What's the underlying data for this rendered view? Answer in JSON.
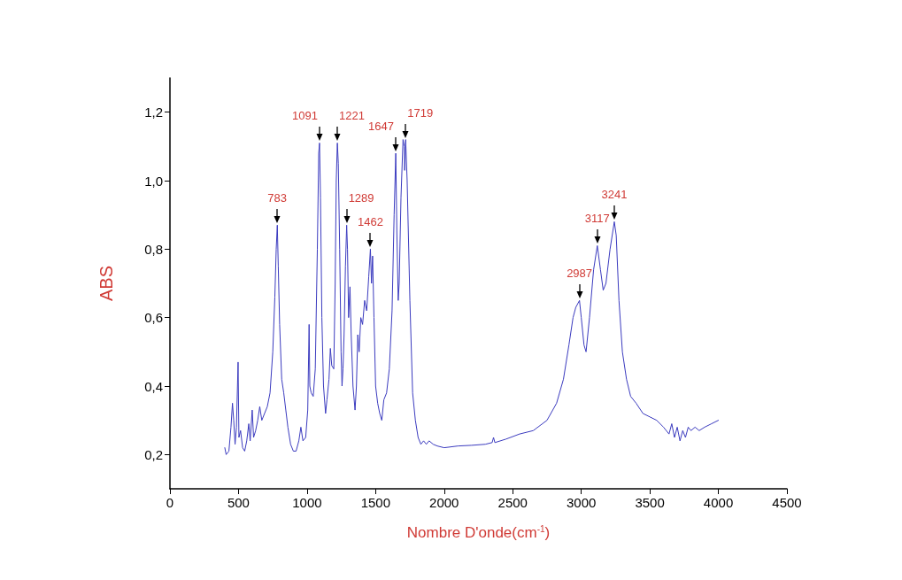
{
  "chart_data": {
    "type": "line",
    "xlabel": "Nombre D'onde(cm$^{-1}$)",
    "ylabel": "ABS",
    "xlim": [
      0,
      4500
    ],
    "xticks": [
      0,
      500,
      1000,
      1500,
      2000,
      2500,
      3000,
      3500,
      4000,
      4500
    ],
    "ylim": [
      0.1,
      1.3
    ],
    "yticks": [
      {
        "value": 0.2,
        "label": "0,2"
      },
      {
        "value": 0.4,
        "label": "0,4"
      },
      {
        "value": 0.6,
        "label": "0,6"
      },
      {
        "value": 0.8,
        "label": "0,8"
      },
      {
        "value": 1.0,
        "label": "1,0"
      },
      {
        "value": 1.2,
        "label": "1,2"
      }
    ],
    "grid": false,
    "marker": "none",
    "line_style": "solid",
    "series": [
      {
        "color": "#3b3bbf",
        "x": [
          400,
          410,
          430,
          445,
          456,
          465,
          475,
          485,
          497,
          503,
          515,
          530,
          545,
          560,
          575,
          585,
          600,
          610,
          625,
          640,
          655,
          670,
          690,
          710,
          730,
          750,
          765,
          775,
          783,
          790,
          800,
          815,
          830,
          845,
          860,
          880,
          900,
          920,
          940,
          955,
          970,
          990,
          1005,
          1015,
          1020,
          1030,
          1045,
          1060,
          1075,
          1085,
          1091,
          1098,
          1108,
          1120,
          1135,
          1145,
          1160,
          1170,
          1180,
          1195,
          1205,
          1213,
          1221,
          1228,
          1238,
          1248,
          1255,
          1262,
          1270,
          1280,
          1289,
          1295,
          1303,
          1313,
          1322,
          1335,
          1350,
          1360,
          1370,
          1380,
          1392,
          1405,
          1420,
          1435,
          1450,
          1462,
          1470,
          1478,
          1488,
          1500,
          1515,
          1530,
          1545,
          1560,
          1580,
          1600,
          1620,
          1635,
          1647,
          1655,
          1665,
          1672,
          1685,
          1700,
          1710,
          1712,
          1719,
          1730,
          1750,
          1770,
          1790,
          1810,
          1830,
          1850,
          1870,
          1890,
          1920,
          1950,
          2000,
          2100,
          2200,
          2300,
          2350,
          2360,
          2370,
          2450,
          2550,
          2650,
          2750,
          2820,
          2870,
          2910,
          2940,
          2960,
          2987,
          3000,
          3020,
          3035,
          3060,
          3090,
          3117,
          3140,
          3160,
          3180,
          3210,
          3241,
          3255,
          3275,
          3300,
          3330,
          3360,
          3400,
          3450,
          3500,
          3550,
          3600,
          3640,
          3660,
          3680,
          3700,
          3720,
          3740,
          3760,
          3780,
          3800,
          3830,
          3860,
          3900,
          3950,
          4000
        ],
        "values": [
          0.22,
          0.2,
          0.21,
          0.28,
          0.35,
          0.3,
          0.23,
          0.28,
          0.47,
          0.25,
          0.27,
          0.22,
          0.21,
          0.24,
          0.29,
          0.24,
          0.33,
          0.25,
          0.27,
          0.3,
          0.34,
          0.3,
          0.32,
          0.34,
          0.38,
          0.5,
          0.66,
          0.8,
          0.87,
          0.75,
          0.58,
          0.42,
          0.38,
          0.33,
          0.28,
          0.23,
          0.21,
          0.21,
          0.24,
          0.28,
          0.24,
          0.25,
          0.33,
          0.58,
          0.4,
          0.38,
          0.37,
          0.45,
          0.8,
          1.08,
          1.11,
          0.95,
          0.6,
          0.4,
          0.32,
          0.36,
          0.42,
          0.51,
          0.46,
          0.45,
          0.7,
          1.0,
          1.11,
          1.05,
          0.8,
          0.5,
          0.4,
          0.45,
          0.55,
          0.75,
          0.87,
          0.8,
          0.6,
          0.69,
          0.55,
          0.4,
          0.33,
          0.4,
          0.55,
          0.5,
          0.6,
          0.58,
          0.65,
          0.62,
          0.72,
          0.8,
          0.7,
          0.78,
          0.6,
          0.4,
          0.35,
          0.32,
          0.3,
          0.36,
          0.38,
          0.45,
          0.62,
          0.9,
          1.08,
          0.85,
          0.65,
          0.7,
          0.95,
          1.12,
          1.1,
          1.03,
          1.12,
          1.0,
          0.65,
          0.38,
          0.3,
          0.25,
          0.23,
          0.24,
          0.23,
          0.24,
          0.23,
          0.225,
          0.22,
          0.225,
          0.227,
          0.23,
          0.235,
          0.25,
          0.235,
          0.245,
          0.26,
          0.27,
          0.3,
          0.35,
          0.42,
          0.52,
          0.6,
          0.63,
          0.65,
          0.6,
          0.52,
          0.5,
          0.6,
          0.74,
          0.81,
          0.74,
          0.68,
          0.7,
          0.8,
          0.88,
          0.84,
          0.65,
          0.5,
          0.42,
          0.37,
          0.35,
          0.32,
          0.31,
          0.3,
          0.28,
          0.26,
          0.29,
          0.25,
          0.28,
          0.24,
          0.27,
          0.25,
          0.28,
          0.27,
          0.28,
          0.27,
          0.28,
          0.29,
          0.3
        ]
      }
    ],
    "annotations": [
      {
        "text": "783",
        "x": 783,
        "y": 0.87
      },
      {
        "text": "1091",
        "x": 1091,
        "y": 1.11
      },
      {
        "text": "1221",
        "x": 1221,
        "y": 1.11
      },
      {
        "text": "1289",
        "x": 1289,
        "y": 0.87
      },
      {
        "text": "1462",
        "x": 1462,
        "y": 0.8
      },
      {
        "text": "1647",
        "x": 1647,
        "y": 1.08
      },
      {
        "text": "1719",
        "x": 1719,
        "y": 1.12
      },
      {
        "text": "2987",
        "x": 2987,
        "y": 0.65
      },
      {
        "text": "3117",
        "x": 3117,
        "y": 0.81
      },
      {
        "text": "3241",
        "x": 3241,
        "y": 0.88
      }
    ]
  }
}
